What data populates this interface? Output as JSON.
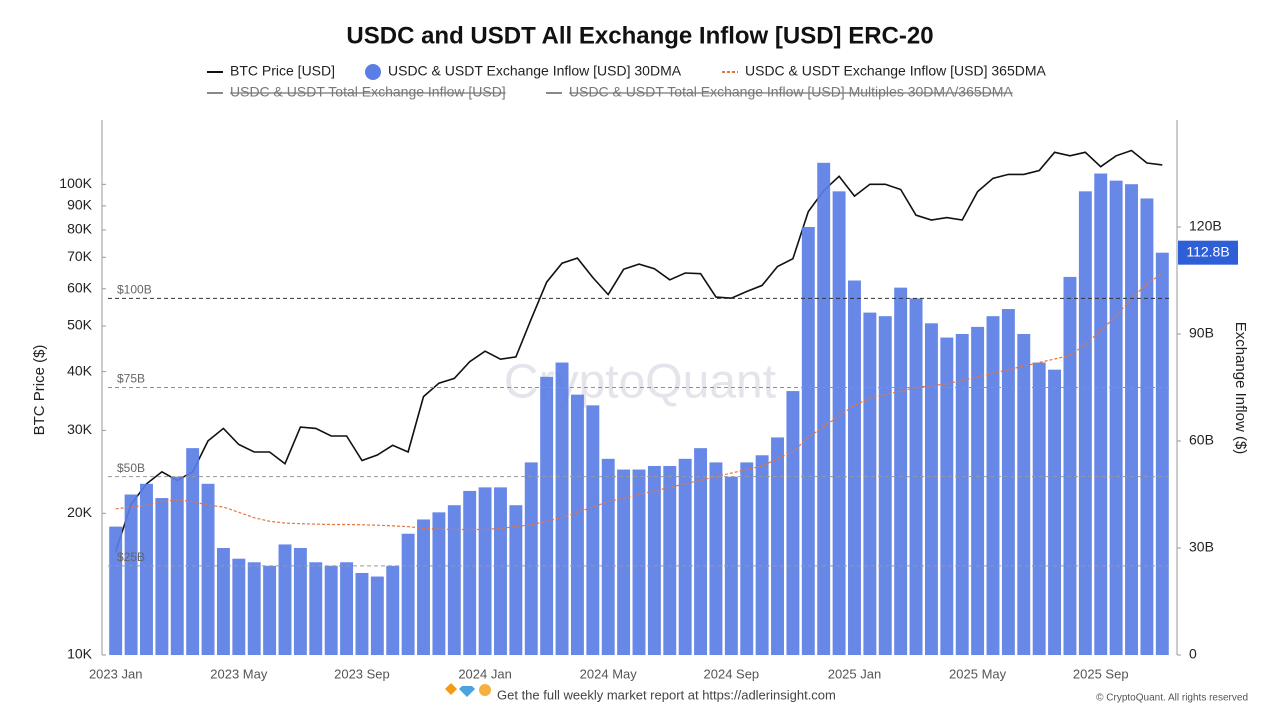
{
  "chart_data": {
    "type": "combo",
    "title": "USDC and USDT All Exchange Inflow [USD] ERC-20",
    "y_axis_label": "BTC Price ($)",
    "y2_axis_label": "Exchange Inflow ($)",
    "watermark": "CryptoQuant",
    "footer": "Get the full weekly market report at https://adlerinsight.com",
    "copyright": "© CryptoQuant. All rights reserved",
    "categories": [
      "2023 Jan",
      null,
      null,
      null,
      null,
      null,
      null,
      null,
      "2023 May",
      null,
      null,
      null,
      null,
      null,
      null,
      null,
      "2023 Sep",
      null,
      null,
      null,
      null,
      null,
      null,
      null,
      "2024 Jan",
      null,
      null,
      null,
      null,
      null,
      null,
      null,
      "2024 May",
      null,
      null,
      null,
      null,
      null,
      null,
      null,
      "2024 Sep",
      null,
      null,
      null,
      null,
      null,
      null,
      null,
      "2025 Jan",
      null,
      null,
      null,
      null,
      null,
      null,
      null,
      "2025 May",
      null,
      null,
      null,
      null,
      null,
      null,
      null,
      "2025 Sep",
      null,
      null,
      null,
      null
    ],
    "ylim": [
      10000,
      137000
    ],
    "log_scale": true,
    "yticks": [
      {
        "value": 10000,
        "label": "10K"
      },
      {
        "value": 20000,
        "label": "20K"
      },
      {
        "value": 30000,
        "label": "30K"
      },
      {
        "value": 40000,
        "label": "40K"
      },
      {
        "value": 50000,
        "label": "50K"
      },
      {
        "value": 60000,
        "label": "60K"
      },
      {
        "value": 70000,
        "label": "70K"
      },
      {
        "value": 80000,
        "label": "80K"
      },
      {
        "value": 90000,
        "label": "90K"
      },
      {
        "value": 100000,
        "label": "100K"
      }
    ],
    "y2lim": [
      0,
      150
    ],
    "y2ticks": [
      0,
      {
        "value": 30,
        "label": "30B"
      },
      {
        "value": 60,
        "label": "60B"
      },
      {
        "value": 90,
        "label": "90B"
      },
      {
        "value": 120,
        "label": "120B"
      }
    ],
    "reference_lines": [
      {
        "value": 100,
        "label": "$100B",
        "color": "#333333"
      },
      {
        "value": 75,
        "label": "$75B",
        "color": "#e07070"
      },
      {
        "value": 50,
        "label": "$50B",
        "color": "#999999"
      },
      {
        "value": 25,
        "label": "$25B",
        "color": "#999999"
      }
    ],
    "series": [
      {
        "name": "BTC Price [USD]",
        "type": "line",
        "color": "#111111",
        "values": [
          16600,
          20900,
          23100,
          24500,
          23500,
          24500,
          28500,
          30300,
          28000,
          27000,
          27000,
          25500,
          30500,
          30300,
          29200,
          29200,
          25900,
          26600,
          27900,
          27000,
          35400,
          37800,
          38700,
          42000,
          44200,
          42500,
          43000,
          51800,
          62000,
          68000,
          69700,
          63400,
          58300,
          66000,
          67700,
          66200,
          62700,
          64800,
          64600,
          57600,
          57300,
          59200,
          61000,
          66900,
          69500,
          87500,
          97000,
          104000,
          94400,
          100000,
          100000,
          97500,
          86000,
          84000,
          85000,
          84000,
          96500,
          103000,
          105000,
          105000,
          107000,
          117000,
          115000,
          117000,
          109000,
          115000,
          118000,
          111000,
          110000
        ]
      },
      {
        "name": "USDC & USDT Exchange Inflow [USD] 30DMA",
        "type": "bar",
        "axis": "y2",
        "color": "#5b7ee5",
        "last_label": "112.8B",
        "values": [
          36,
          45,
          48,
          44,
          50,
          58,
          48,
          30,
          27,
          26,
          25,
          31,
          30,
          26,
          25,
          26,
          23,
          22,
          25,
          34,
          38,
          40,
          42,
          46,
          47,
          47,
          42,
          54,
          78,
          82,
          73,
          70,
          55,
          52,
          52,
          53,
          53,
          55,
          58,
          54,
          50,
          54,
          56,
          61,
          74,
          120,
          138,
          130,
          105,
          96,
          95,
          103,
          100,
          93,
          89,
          90,
          92,
          95,
          97,
          90,
          82,
          80,
          106,
          130,
          135,
          133,
          132,
          128,
          112.8
        ]
      },
      {
        "name": "USDC & USDT Exchange Inflow [USD] 365DMA",
        "type": "line",
        "dashed": true,
        "axis": "y2",
        "color": "#e8743b",
        "values": [
          41,
          41.5,
          42,
          43,
          43.5,
          43,
          42,
          41.5,
          40,
          38.5,
          37.5,
          37,
          36.8,
          36.7,
          36.6,
          36.6,
          36.5,
          36.4,
          36.2,
          36,
          35.5,
          35.3,
          35.2,
          35.2,
          35.2,
          35.5,
          36,
          36.5,
          37.5,
          38.5,
          40,
          41.5,
          43,
          44,
          45,
          46,
          47,
          48,
          49,
          50,
          51,
          52,
          53,
          55,
          57,
          61,
          64,
          67,
          70,
          72,
          73,
          74,
          75,
          75.5,
          76,
          77,
          78,
          79,
          80,
          81,
          82,
          83,
          84,
          87,
          91,
          95,
          100,
          104,
          107
        ]
      },
      {
        "name": "USDC & USDT Total Exchange Inflow [USD]",
        "type": "line",
        "color": "#888888",
        "visible": false
      },
      {
        "name": "USDC & USDT Total Exchange Inflow [USD] Multiples 30DMA/365DMA",
        "type": "line",
        "color": "#888888",
        "visible": false
      }
    ]
  }
}
